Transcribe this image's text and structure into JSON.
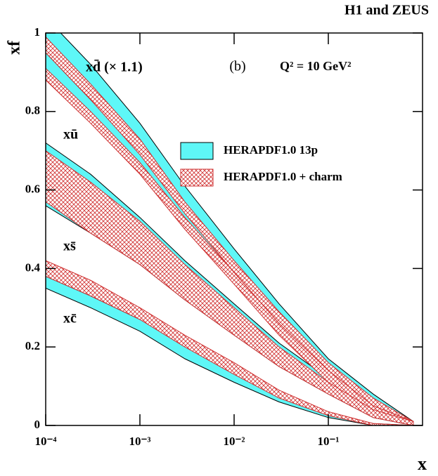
{
  "chart_data": {
    "type": "band",
    "title": "H1 and ZEUS",
    "x_label": "x",
    "y_label": "xf",
    "panel_label": "(b)",
    "scale_label": "Q² = 10 GeV²",
    "curve_labels": [
      "xd̄ (× 1.1)",
      "xū",
      "xs̄",
      "xc̄"
    ],
    "x_scale": "log",
    "xlim": [
      0.0001,
      1
    ],
    "xticks": [
      {
        "value": 0.0001,
        "label": "10⁻⁴"
      },
      {
        "value": 0.001,
        "label": "10⁻³"
      },
      {
        "value": 0.01,
        "label": "10⁻²"
      },
      {
        "value": 0.1,
        "label": "10⁻¹"
      }
    ],
    "ylim": [
      0,
      1
    ],
    "yticks": [
      0,
      0.2,
      0.4,
      0.6,
      0.8,
      1
    ],
    "x": [
      0.0001,
      0.0003,
      0.001,
      0.003,
      0.01,
      0.03,
      0.1,
      0.3,
      0.8
    ],
    "series": [
      {
        "name": "HERAPDF1.0 13p",
        "color": "#5ef7f7",
        "style": "solid",
        "bands": [
          {
            "low": [
              0.96,
              0.84,
              0.7,
              0.55,
              0.4,
              0.27,
              0.14,
              0.05,
              0.0
            ],
            "high": [
              1.04,
              0.92,
              0.77,
              0.61,
              0.45,
              0.31,
              0.17,
              0.08,
              0.01
            ]
          },
          {
            "low": [
              0.89,
              0.78,
              0.65,
              0.51,
              0.37,
              0.24,
              0.12,
              0.04,
              0.0
            ],
            "high": [
              0.95,
              0.83,
              0.7,
              0.55,
              0.41,
              0.27,
              0.15,
              0.06,
              0.01
            ]
          },
          {
            "low": [
              0.56,
              0.49,
              0.41,
              0.32,
              0.23,
              0.15,
              0.08,
              0.02,
              0.0
            ],
            "high": [
              0.72,
              0.64,
              0.53,
              0.42,
              0.31,
              0.21,
              0.12,
              0.04,
              0.01
            ]
          },
          {
            "low": [
              0.35,
              0.3,
              0.24,
              0.17,
              0.11,
              0.06,
              0.02,
              0.0,
              0.0
            ],
            "high": [
              0.38,
              0.33,
              0.27,
              0.21,
              0.14,
              0.08,
              0.03,
              0.005,
              0.0
            ]
          }
        ]
      },
      {
        "name": "HERAPDF1.0 + charm",
        "color": "#d03030",
        "style": "hatch",
        "bands": [
          {
            "low": [
              0.95,
              0.83,
              0.69,
              0.54,
              0.39,
              0.26,
              0.13,
              0.04,
              0.0
            ],
            "high": [
              0.99,
              0.87,
              0.73,
              0.57,
              0.42,
              0.29,
              0.16,
              0.07,
              0.01
            ]
          },
          {
            "low": [
              0.88,
              0.77,
              0.64,
              0.5,
              0.36,
              0.23,
              0.11,
              0.03,
              0.0
            ],
            "high": [
              0.91,
              0.8,
              0.67,
              0.53,
              0.39,
              0.26,
              0.14,
              0.05,
              0.01
            ]
          },
          {
            "low": [
              0.57,
              0.49,
              0.41,
              0.32,
              0.23,
              0.15,
              0.08,
              0.02,
              0.0
            ],
            "high": [
              0.7,
              0.62,
              0.52,
              0.41,
              0.3,
              0.2,
              0.11,
              0.04,
              0.01
            ]
          },
          {
            "low": [
              0.38,
              0.33,
              0.27,
              0.2,
              0.13,
              0.07,
              0.025,
              0.0,
              0.0
            ],
            "high": [
              0.42,
              0.37,
              0.3,
              0.23,
              0.16,
              0.09,
              0.035,
              0.005,
              0.0
            ]
          }
        ]
      }
    ]
  }
}
